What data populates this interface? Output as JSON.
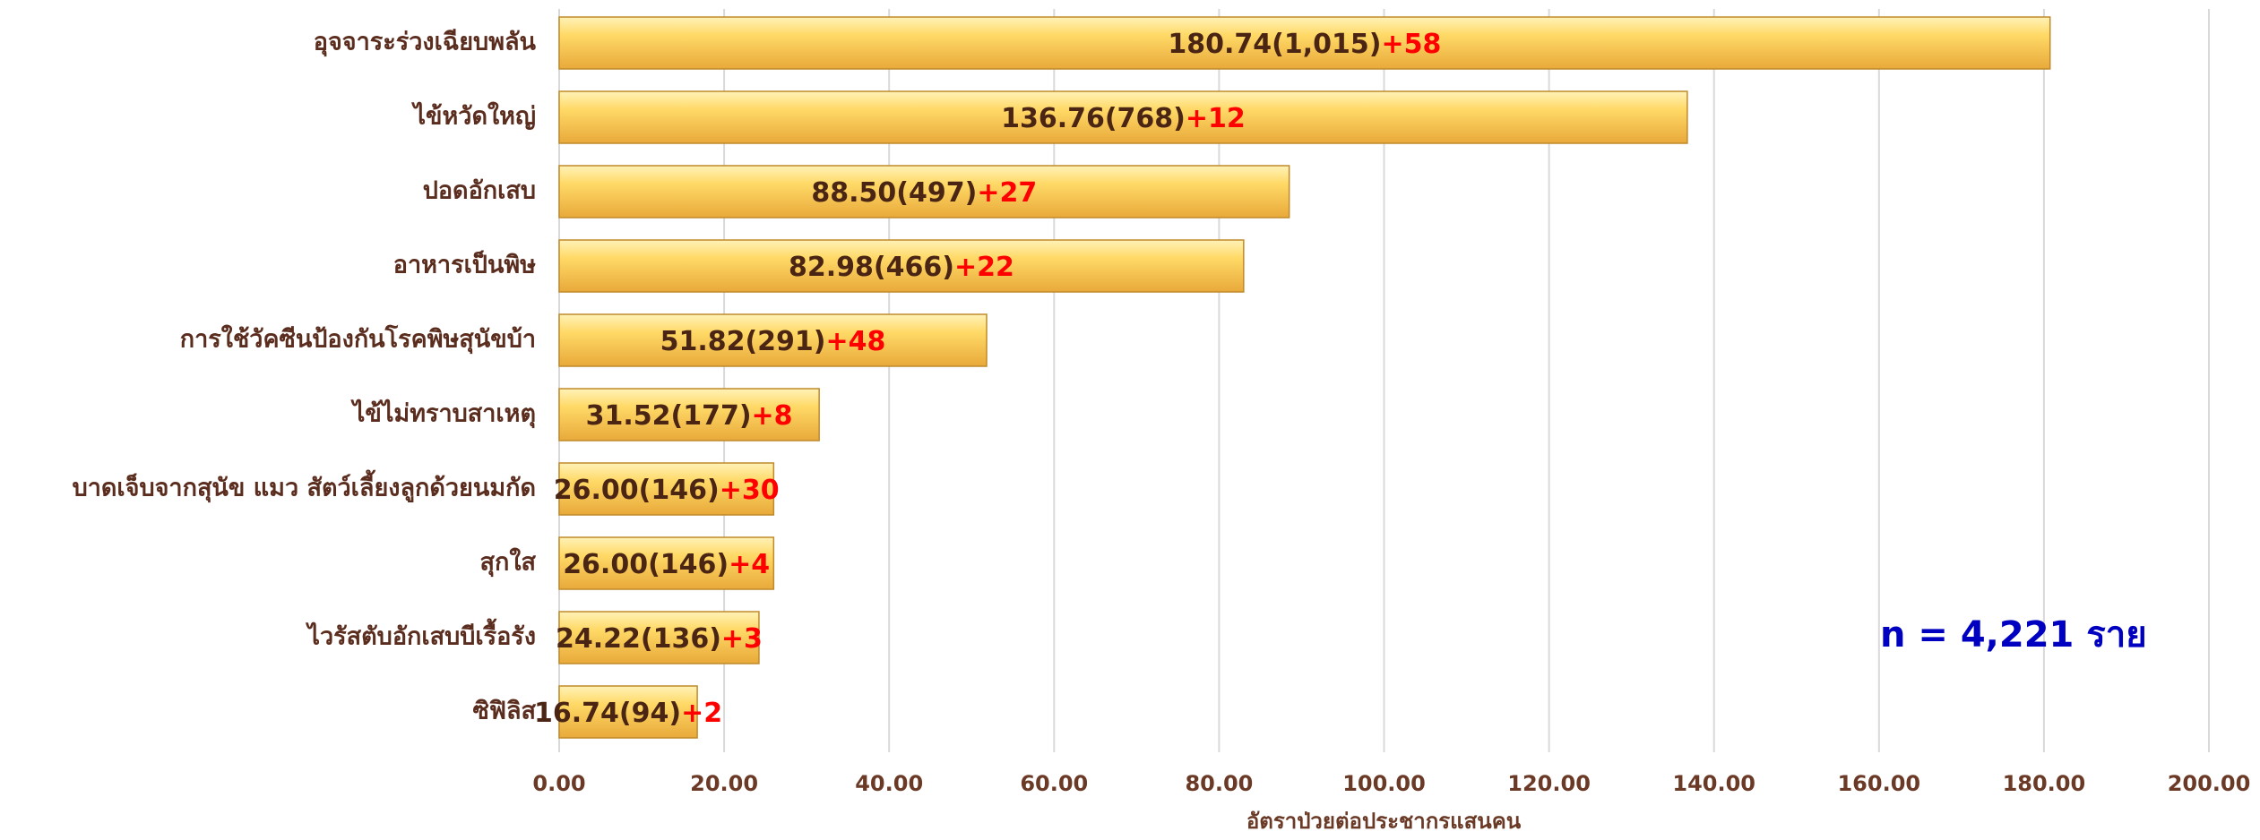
{
  "chart_data": {
    "type": "hbar",
    "categories": [
      "อุจจาระร่วงเฉียบพลัน",
      "ไข้หวัดใหญ่",
      "ปอดอักเสบ",
      "อาหารเป็นพิษ",
      "การใช้วัคซีนป้องกันโรคพิษสุนัขบ้า",
      "ไข้ไม่ทราบสาเหตุ",
      "บาดเจ็บจากสุนัข แมว สัตว์เลี้ยงลูกด้วยนมกัด",
      "สุกใส",
      "ไวรัสตับอักเสบบีเรื้อรัง",
      "ซิฟิลิส"
    ],
    "values": [
      180.74,
      136.76,
      88.5,
      82.98,
      51.82,
      31.52,
      26.0,
      26.0,
      24.22,
      16.74
    ],
    "value_labels": [
      "180.74(1,015)",
      "136.76(768)",
      "88.50(497)",
      "82.98(466)",
      "51.82(291)",
      "31.52(177)",
      "26.00(146)",
      "26.00(146)",
      "24.22(136)",
      "16.74(94)"
    ],
    "increments": [
      "+58",
      "+12",
      "+27",
      "+22",
      "+48",
      "+8",
      "+30",
      "+4",
      "+3",
      "+2"
    ],
    "color": "#ffd966",
    "xlabel": "อัตราป่วยต่อประชากรแสนคน",
    "annotation": "n = 4,221 ราย",
    "xlim": [
      0,
      200
    ],
    "xticks": [
      {
        "value": 0,
        "label": "0.00"
      },
      {
        "value": 20,
        "label": "20.00"
      },
      {
        "value": 40,
        "label": "40.00"
      },
      {
        "value": 60,
        "label": "60.00"
      },
      {
        "value": 80,
        "label": "80.00"
      },
      {
        "value": 100,
        "label": "100.00"
      },
      {
        "value": 120,
        "label": "120.00"
      },
      {
        "value": 140,
        "label": "140.00"
      },
      {
        "value": 160,
        "label": "160.00"
      },
      {
        "value": 180,
        "label": "180.00"
      },
      {
        "value": 200,
        "label": "200.00"
      }
    ],
    "grid": true
  }
}
